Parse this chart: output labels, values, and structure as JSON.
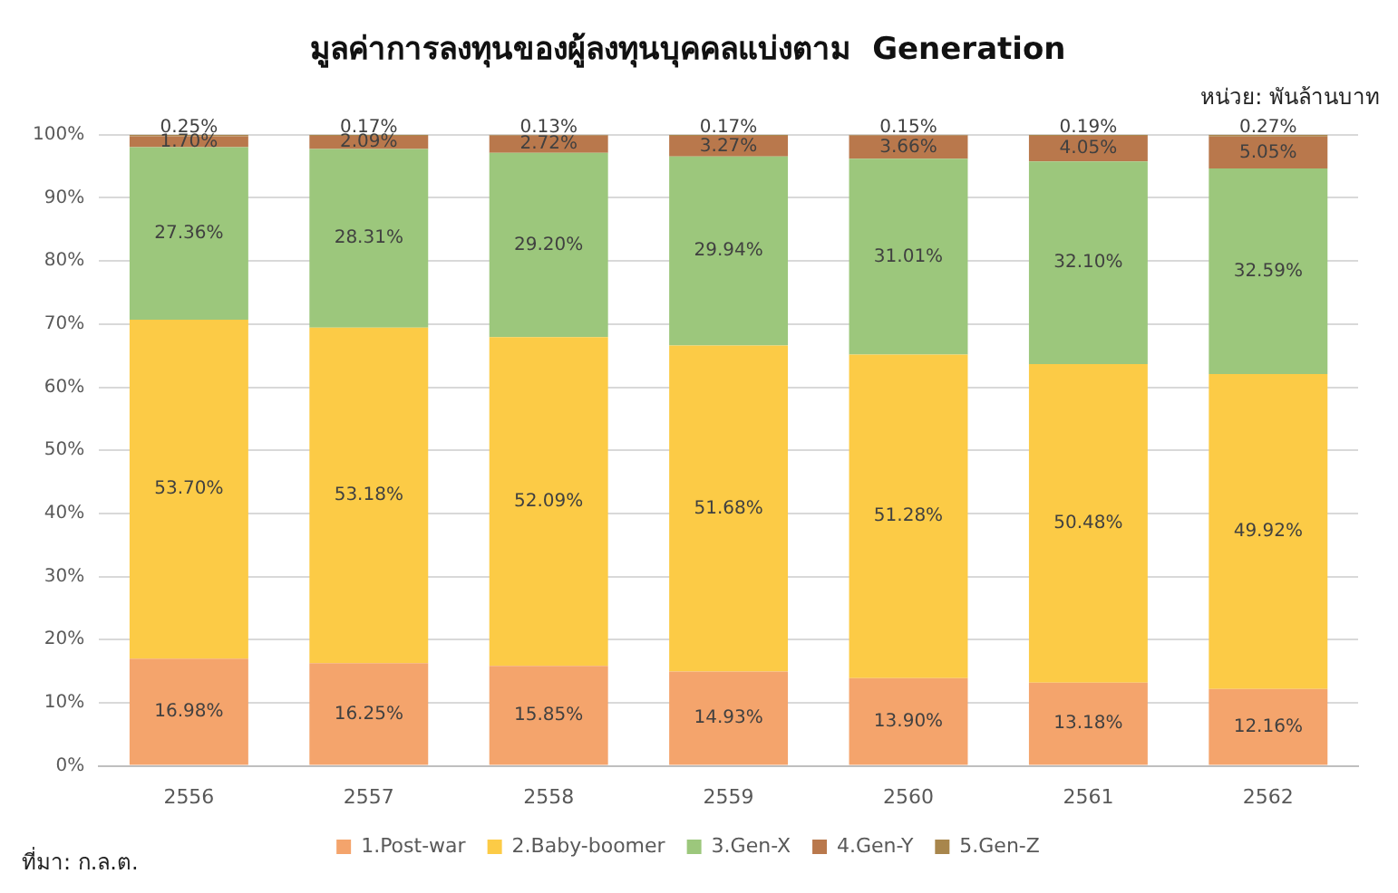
{
  "chart_data": {
    "type": "bar",
    "stacked": true,
    "title": "มูลค่าการลงทุนของผู้ลงทุนบุคคลแบ่งตาม  Generation",
    "annotations": [
      "หน่วย: พันล้านบาท",
      "ที่มา: ก.ล.ต."
    ],
    "categories": [
      "2556",
      "2557",
      "2558",
      "2559",
      "2560",
      "2561",
      "2562"
    ],
    "series": [
      {
        "name": "1.Post-war",
        "color": "#f4a46c",
        "values": [
          16.98,
          16.25,
          15.85,
          14.93,
          13.9,
          13.18,
          12.16
        ],
        "value_labels": [
          "16.98%",
          "16.25%",
          "15.85%",
          "14.93%",
          "13.90%",
          "13.18%",
          "12.16%"
        ]
      },
      {
        "name": "2.Baby-boomer",
        "color": "#fccb46",
        "values": [
          53.7,
          53.18,
          52.09,
          51.68,
          51.28,
          50.48,
          49.92
        ],
        "value_labels": [
          "53.70%",
          "53.18%",
          "52.09%",
          "51.68%",
          "51.28%",
          "50.48%",
          "49.92%"
        ]
      },
      {
        "name": "3.Gen-X",
        "color": "#9cc77c",
        "values": [
          27.36,
          28.31,
          29.2,
          29.94,
          31.01,
          32.1,
          32.59
        ],
        "value_labels": [
          "27.36%",
          "28.31%",
          "29.20%",
          "29.94%",
          "31.01%",
          "32.10%",
          "32.59%"
        ]
      },
      {
        "name": "4.Gen-Y",
        "color": "#b9784c",
        "values": [
          1.7,
          2.09,
          2.72,
          3.27,
          3.66,
          4.05,
          5.05
        ],
        "value_labels": [
          "1.70%",
          "2.09%",
          "2.72%",
          "3.27%",
          "3.66%",
          "4.05%",
          "5.05%"
        ]
      },
      {
        "name": "5.Gen-Z",
        "color": "#a8864c",
        "values": [
          0.25,
          0.17,
          0.13,
          0.17,
          0.15,
          0.19,
          0.27
        ],
        "value_labels": [
          "0.25%",
          "0.17%",
          "0.13%",
          "0.17%",
          "0.15%",
          "0.19%",
          "0.27%"
        ]
      }
    ],
    "ylim": [
      0,
      100
    ],
    "yticks": [
      {
        "value": 0,
        "label": "0%"
      },
      {
        "value": 10,
        "label": "10%"
      },
      {
        "value": 20,
        "label": "20%"
      },
      {
        "value": 30,
        "label": "30%"
      },
      {
        "value": 40,
        "label": "40%"
      },
      {
        "value": 50,
        "label": "50%"
      },
      {
        "value": 60,
        "label": "60%"
      },
      {
        "value": 70,
        "label": "70%"
      },
      {
        "value": 80,
        "label": "80%"
      },
      {
        "value": 90,
        "label": "90%"
      },
      {
        "value": 100,
        "label": "100%"
      }
    ],
    "grid": "y",
    "legend": "bottom"
  }
}
